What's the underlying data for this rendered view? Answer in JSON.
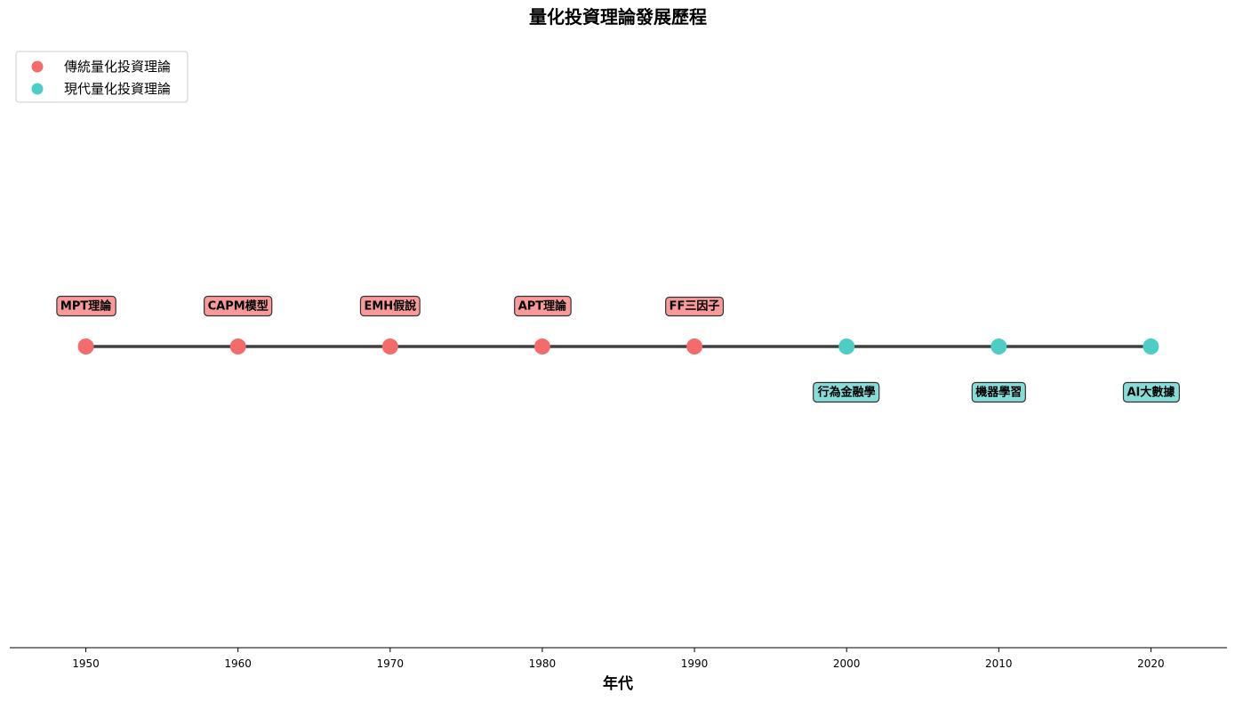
{
  "chart_data": {
    "type": "scatter",
    "title": "量化投資理論發展歷程",
    "xlabel": "年代",
    "ylabel": "",
    "xlim": [
      1945,
      2025
    ],
    "x_ticks": [
      1950,
      1960,
      1970,
      1980,
      1990,
      2000,
      2010,
      2020
    ],
    "grid": false,
    "legend_position": "top-left",
    "colors": {
      "traditional": "#f36b6b",
      "traditional_box": "#f89a9a",
      "modern": "#4ecdc4",
      "modern_box": "#86dcd6",
      "line": "#404040"
    },
    "series": [
      {
        "name": "傳統量化投資理論",
        "category": "traditional",
        "label_side": "above",
        "points": [
          {
            "x": 1950,
            "label": "MPT理論"
          },
          {
            "x": 1960,
            "label": "CAPM模型"
          },
          {
            "x": 1970,
            "label": "EMH假說"
          },
          {
            "x": 1980,
            "label": "APT理論"
          },
          {
            "x": 1990,
            "label": "FF三因子"
          }
        ]
      },
      {
        "name": "現代量化投資理論",
        "category": "modern",
        "label_side": "below",
        "points": [
          {
            "x": 2000,
            "label": "行為金融學"
          },
          {
            "x": 2010,
            "label": "機器學習"
          },
          {
            "x": 2020,
            "label": "AI大數據"
          }
        ]
      }
    ]
  }
}
